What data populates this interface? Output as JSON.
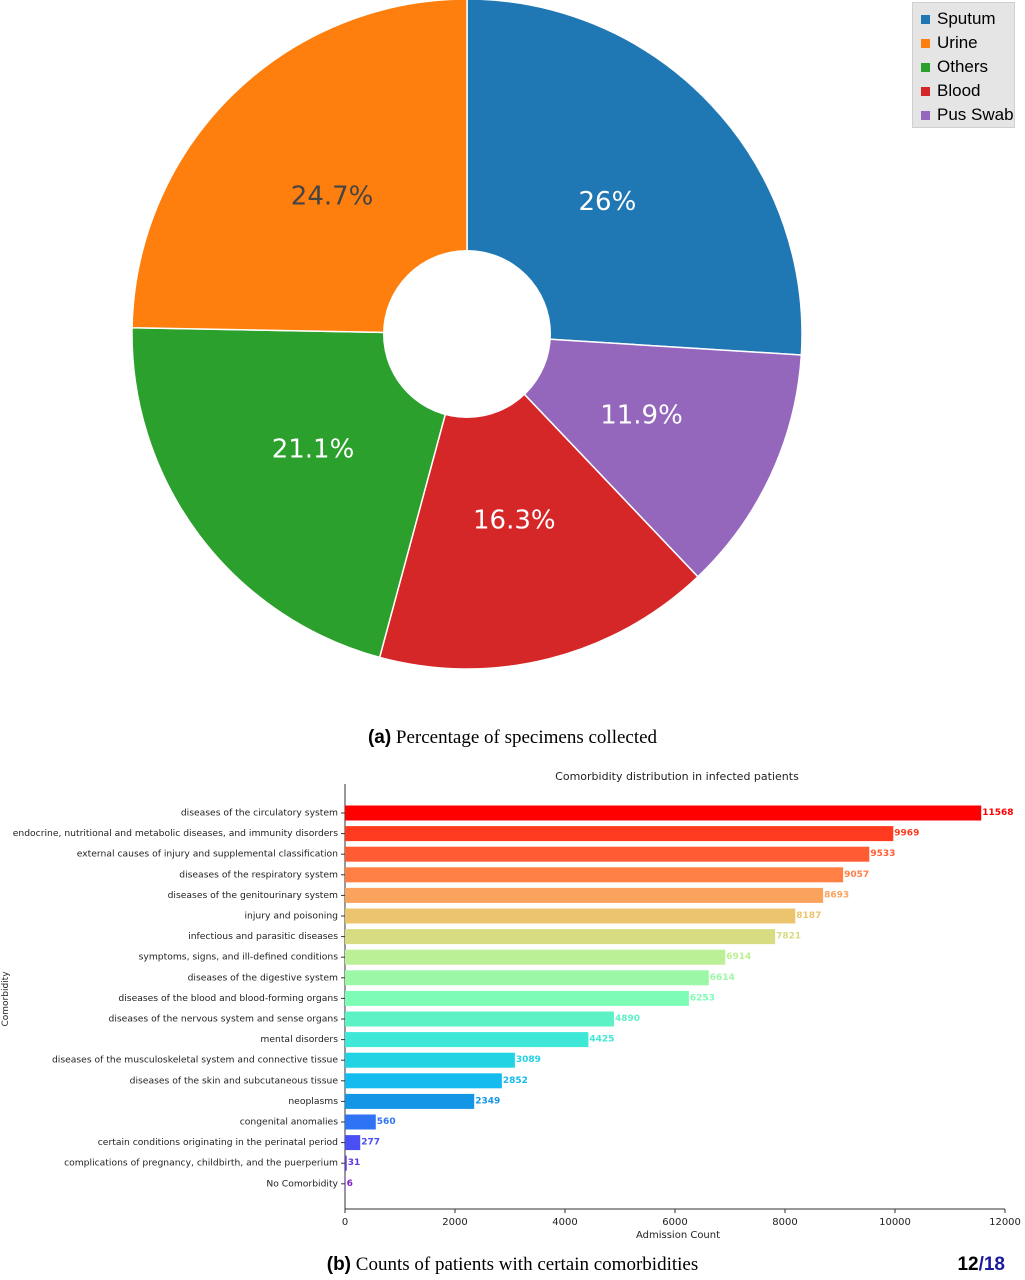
{
  "chart_data": [
    {
      "type": "pie",
      "donut": true,
      "slices": [
        {
          "label": "Sputum",
          "value": 26.0,
          "text": "26%",
          "color": "#1f77b4",
          "text_color": "#ffffff"
        },
        {
          "label": "Pus Swab",
          "value": 11.9,
          "text": "11.9%",
          "color": "#9467bd",
          "text_color": "#ffffff"
        },
        {
          "label": "Blood",
          "value": 16.3,
          "text": "16.3%",
          "color": "#d62728",
          "text_color": "#ffffff"
        },
        {
          "label": "Others",
          "value": 21.1,
          "text": "21.1%",
          "color": "#2ca02c",
          "text_color": "#ffffff"
        },
        {
          "label": "Urine",
          "value": 24.7,
          "text": "24.7%",
          "color": "#ff7f0e",
          "text_color": "#444444"
        }
      ],
      "legend": [
        "Sputum",
        "Urine",
        "Others",
        "Blood",
        "Pus Swab"
      ],
      "legend_colors": [
        "#1f77b4",
        "#ff7f0e",
        "#2ca02c",
        "#d62728",
        "#9467bd"
      ],
      "legend_position": "top-right"
    },
    {
      "type": "bar",
      "orientation": "horizontal",
      "title": "Comorbidity distribution in infected patients",
      "xlabel": "Admission Count",
      "ylabel": "Comorbidity",
      "xlim": [
        0,
        12000
      ],
      "xticks": [
        0,
        2000,
        4000,
        6000,
        8000,
        10000,
        12000
      ],
      "categories": [
        "diseases of the circulatory system",
        "endocrine, nutritional and metabolic diseases, and immunity disorders",
        "external causes of injury and supplemental classification",
        "diseases of the respiratory system",
        "diseases of the genitourinary system",
        "injury and poisoning",
        "infectious and parasitic diseases",
        "symptoms, signs, and ill-defined conditions",
        "diseases of the digestive system",
        "diseases of the blood and blood-forming organs",
        "diseases of the nervous system and sense organs",
        "mental disorders",
        "diseases of the musculoskeletal system and connective tissue",
        "diseases of the skin and subcutaneous tissue",
        "neoplasms",
        "congenital anomalies",
        "certain conditions originating in the perinatal period",
        "complications of pregnancy, childbirth, and the puerperium",
        "No Comorbidity"
      ],
      "values": [
        11568,
        9969,
        9533,
        9057,
        8693,
        8187,
        7821,
        6914,
        6614,
        6253,
        4890,
        4425,
        3089,
        2852,
        2349,
        560,
        277,
        31,
        6
      ],
      "colors": [
        "#ff0000",
        "#ff3a1f",
        "#ff5c33",
        "#ff7f45",
        "#f9a35c",
        "#edc46e",
        "#d7dc82",
        "#bcf096",
        "#9cf8a7",
        "#7dfcb5",
        "#5df2c6",
        "#3ee7d6",
        "#22d3e3",
        "#14bbee",
        "#1496e7",
        "#2f73f5",
        "#4a4ff5",
        "#6238e0",
        "#7a22c8"
      ]
    }
  ],
  "captions": {
    "a_tag": "(a)",
    "a_text": " Percentage of specimens collected",
    "b_tag": "(b)",
    "b_text": " Counts of patients with certain comorbidities"
  },
  "page": {
    "current": "12",
    "separator": "/",
    "total": "18"
  }
}
